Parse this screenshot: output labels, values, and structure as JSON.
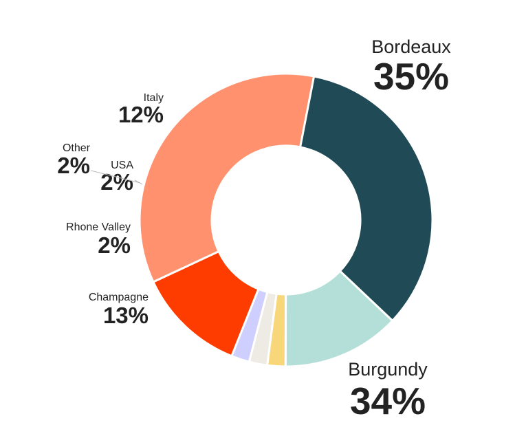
{
  "chart_data": {
    "type": "pie",
    "style": "donut",
    "title": "",
    "categories": [
      "Bordeaux",
      "Burgundy",
      "Champagne",
      "Rhone Valley",
      "Other",
      "USA",
      "Italy"
    ],
    "values": [
      35,
      34,
      13,
      2,
      2,
      2,
      12
    ],
    "labels": [
      "35%",
      "34%",
      "13%",
      "2%",
      "2%",
      "2%",
      "12%"
    ],
    "colors": [
      "#FF916E",
      "#1F4A56",
      "#B3DFD8",
      "#F7D77A",
      "#EEEAE4",
      "#CFCFFF",
      "#FF3C00"
    ],
    "legend": "none"
  }
}
